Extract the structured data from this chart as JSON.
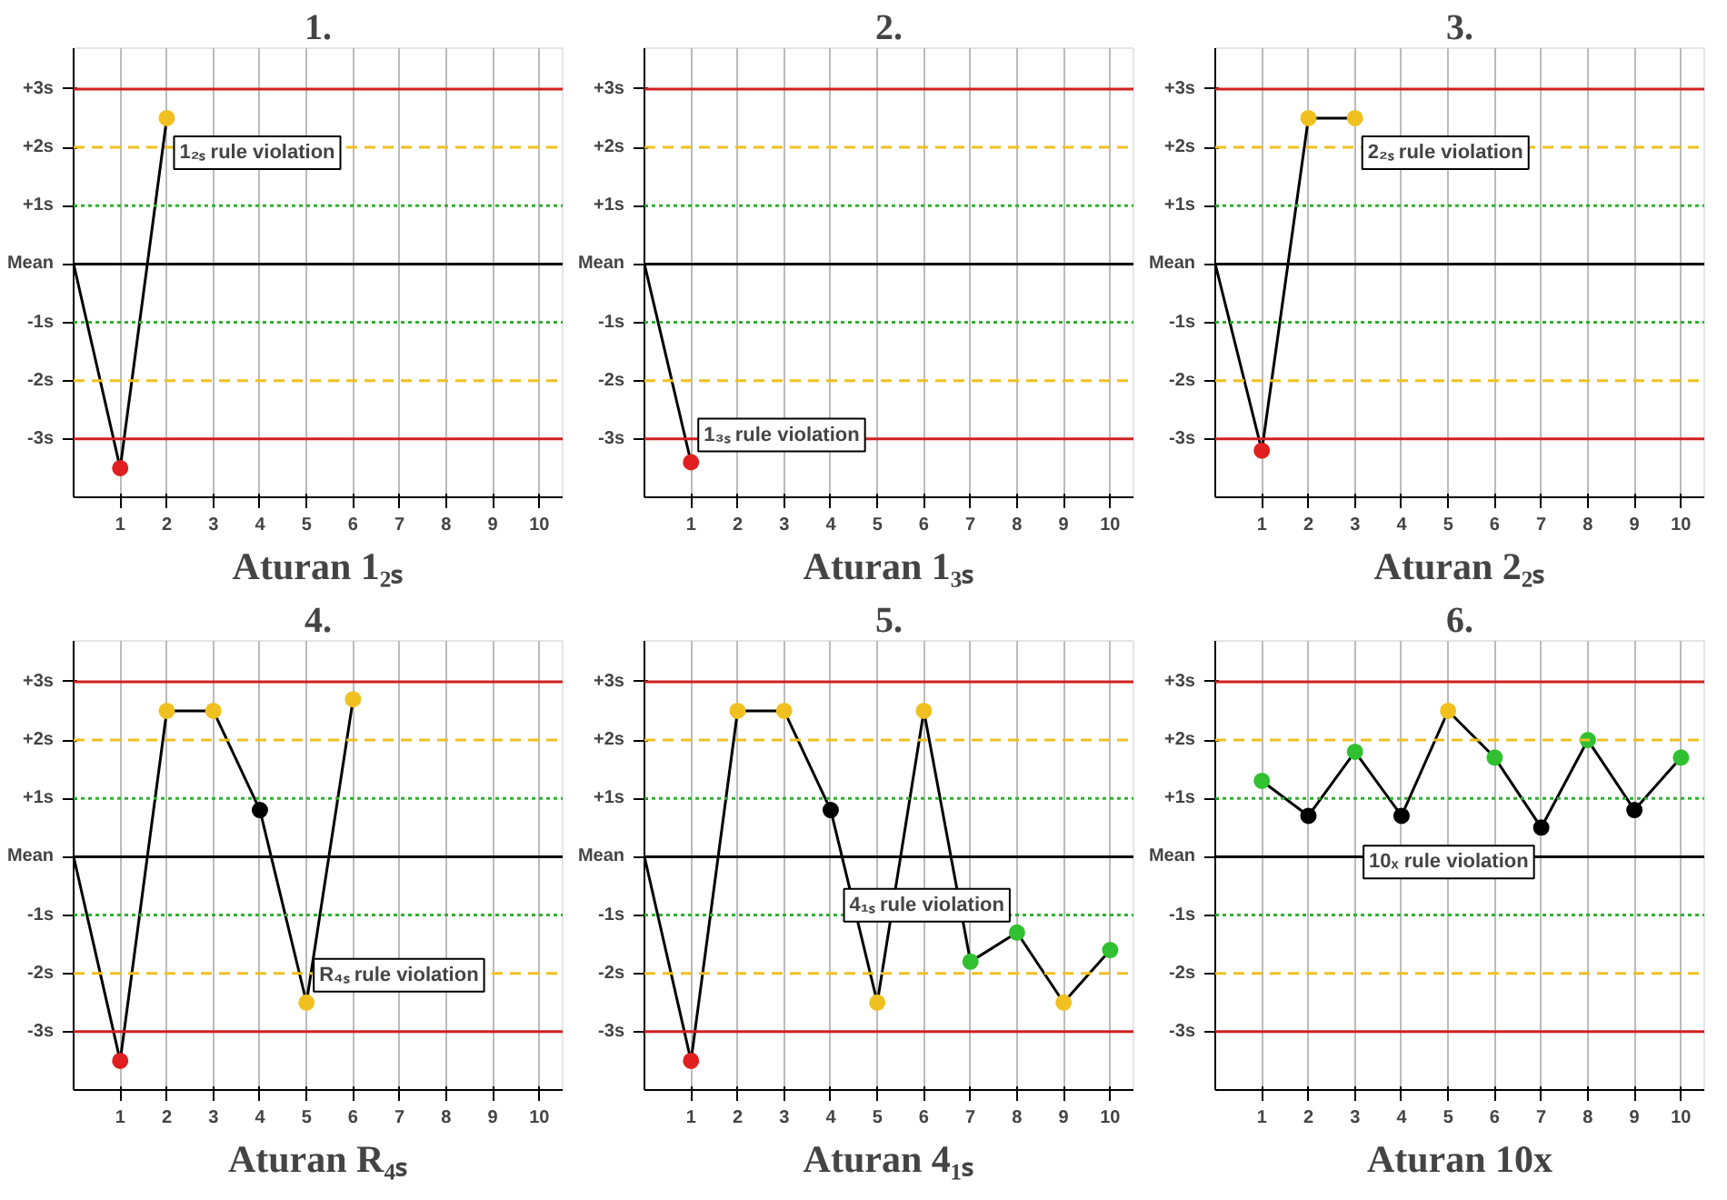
{
  "chart_data": [
    {
      "type": "line",
      "title": "1.",
      "xlabel": "Aturan 1₂ₛ",
      "x": [
        0,
        1,
        2
      ],
      "series": [
        {
          "color": "#000000",
          "values": [
            0,
            -3.5,
            2.5
          ],
          "colors": [
            null,
            "#e02020",
            "#f0c020"
          ]
        }
      ],
      "xlim": [
        0,
        10.5
      ],
      "ylim": [
        -4,
        3.7
      ],
      "xticks": [
        1,
        2,
        3,
        4,
        5,
        6,
        7,
        8,
        9,
        10
      ],
      "yticks": [
        {
          "value": 3,
          "label": "+3s"
        },
        {
          "value": 2,
          "label": "+2s"
        },
        {
          "value": 1,
          "label": "+1s"
        },
        {
          "value": 0,
          "label": "Mean"
        },
        {
          "value": -1,
          "label": "-1s"
        },
        {
          "value": -2,
          "label": "-2s"
        },
        {
          "value": -3,
          "label": "-3s"
        }
      ],
      "grid": "x",
      "marker": "circle",
      "line_style": "solid",
      "annotations": [
        {
          "text": "1₂ₛ rule violation",
          "x": 2,
          "y": 2.5
        }
      ],
      "ref_lines": [
        {
          "axis": "y",
          "value": 3,
          "color": "#d02020",
          "line_style": "solid"
        },
        {
          "axis": "y",
          "value": 2,
          "color": "#f0c020",
          "line_style": "dashed"
        },
        {
          "axis": "y",
          "value": 1,
          "color": "#30b030",
          "line_style": "dotted"
        },
        {
          "axis": "y",
          "value": 0,
          "color": "#000000",
          "line_style": "solid"
        },
        {
          "axis": "y",
          "value": -1,
          "color": "#30b030",
          "line_style": "dotted"
        },
        {
          "axis": "y",
          "value": -2,
          "color": "#f0c020",
          "line_style": "dashed"
        },
        {
          "axis": "y",
          "value": -3,
          "color": "#d02020",
          "line_style": "solid"
        }
      ]
    },
    {
      "type": "line",
      "title": "2.",
      "xlabel": "Aturan 1₃ₛ",
      "x": [
        0,
        1
      ],
      "series": [
        {
          "color": "#000000",
          "values": [
            0,
            -3.4
          ],
          "colors": [
            null,
            "#e02020"
          ]
        }
      ],
      "xlim": [
        0,
        10.5
      ],
      "ylim": [
        -4,
        3.7
      ],
      "xticks": [
        1,
        2,
        3,
        4,
        5,
        6,
        7,
        8,
        9,
        10
      ],
      "yticks": [
        {
          "value": 3,
          "label": "+3s"
        },
        {
          "value": 2,
          "label": "+2s"
        },
        {
          "value": 1,
          "label": "+1s"
        },
        {
          "value": 0,
          "label": "Mean"
        },
        {
          "value": -1,
          "label": "-1s"
        },
        {
          "value": -2,
          "label": "-2s"
        },
        {
          "value": -3,
          "label": "-3s"
        }
      ],
      "grid": "x",
      "marker": "circle",
      "line_style": "solid",
      "annotations": [
        {
          "text": "1₃ₛ rule violation",
          "x": 1,
          "y": -3.4
        }
      ],
      "ref_lines": [
        {
          "axis": "y",
          "value": 3,
          "color": "#d02020",
          "line_style": "solid"
        },
        {
          "axis": "y",
          "value": 2,
          "color": "#f0c020",
          "line_style": "dashed"
        },
        {
          "axis": "y",
          "value": 1,
          "color": "#30b030",
          "line_style": "dotted"
        },
        {
          "axis": "y",
          "value": 0,
          "color": "#000000",
          "line_style": "solid"
        },
        {
          "axis": "y",
          "value": -1,
          "color": "#30b030",
          "line_style": "dotted"
        },
        {
          "axis": "y",
          "value": -2,
          "color": "#f0c020",
          "line_style": "dashed"
        },
        {
          "axis": "y",
          "value": -3,
          "color": "#d02020",
          "line_style": "solid"
        }
      ]
    },
    {
      "type": "line",
      "title": "3.",
      "xlabel": "Aturan 2₂ₛ",
      "x": [
        0,
        1,
        2,
        3
      ],
      "series": [
        {
          "color": "#000000",
          "values": [
            0,
            -3.2,
            2.5,
            2.5
          ],
          "colors": [
            null,
            "#e02020",
            "#f0c020",
            "#f0c020"
          ]
        }
      ],
      "xlim": [
        0,
        10.5
      ],
      "ylim": [
        -4,
        3.7
      ],
      "xticks": [
        1,
        2,
        3,
        4,
        5,
        6,
        7,
        8,
        9,
        10
      ],
      "yticks": [
        {
          "value": 3,
          "label": "+3s"
        },
        {
          "value": 2,
          "label": "+2s"
        },
        {
          "value": 1,
          "label": "+1s"
        },
        {
          "value": 0,
          "label": "Mean"
        },
        {
          "value": -1,
          "label": "-1s"
        },
        {
          "value": -2,
          "label": "-2s"
        },
        {
          "value": -3,
          "label": "-3s"
        }
      ],
      "grid": "x",
      "marker": "circle",
      "line_style": "solid",
      "annotations": [
        {
          "text": "2₂ₛ rule violation",
          "x": 3,
          "y": 2.5
        }
      ],
      "ref_lines": [
        {
          "axis": "y",
          "value": 3,
          "color": "#d02020",
          "line_style": "solid"
        },
        {
          "axis": "y",
          "value": 2,
          "color": "#f0c020",
          "line_style": "dashed"
        },
        {
          "axis": "y",
          "value": 1,
          "color": "#30b030",
          "line_style": "dotted"
        },
        {
          "axis": "y",
          "value": 0,
          "color": "#000000",
          "line_style": "solid"
        },
        {
          "axis": "y",
          "value": -1,
          "color": "#30b030",
          "line_style": "dotted"
        },
        {
          "axis": "y",
          "value": -2,
          "color": "#f0c020",
          "line_style": "dashed"
        },
        {
          "axis": "y",
          "value": -3,
          "color": "#d02020",
          "line_style": "solid"
        }
      ]
    },
    {
      "type": "line",
      "title": "4.",
      "xlabel": "Aturan R₄ₛ",
      "x": [
        0,
        1,
        2,
        3,
        4,
        5,
        6
      ],
      "series": [
        {
          "color": "#000000",
          "values": [
            0,
            -3.5,
            2.5,
            2.5,
            0.8,
            -2.5,
            2.7
          ],
          "colors": [
            null,
            "#e02020",
            "#f0c020",
            "#f0c020",
            "#000000",
            "#f0c020",
            "#f0c020"
          ]
        }
      ],
      "xlim": [
        0,
        10.5
      ],
      "ylim": [
        -4,
        3.7
      ],
      "xticks": [
        1,
        2,
        3,
        4,
        5,
        6,
        7,
        8,
        9,
        10
      ],
      "yticks": [
        {
          "value": 3,
          "label": "+3s"
        },
        {
          "value": 2,
          "label": "+2s"
        },
        {
          "value": 1,
          "label": "+1s"
        },
        {
          "value": 0,
          "label": "Mean"
        },
        {
          "value": -1,
          "label": "-1s"
        },
        {
          "value": -2,
          "label": "-2s"
        },
        {
          "value": -3,
          "label": "-3s"
        }
      ],
      "grid": "x",
      "marker": "circle",
      "line_style": "solid",
      "annotations": [
        {
          "text": "R₄ₛ rule violation",
          "x": 5,
          "y": -2.5
        }
      ],
      "ref_lines": [
        {
          "axis": "y",
          "value": 3,
          "color": "#d02020",
          "line_style": "solid"
        },
        {
          "axis": "y",
          "value": 2,
          "color": "#f0c020",
          "line_style": "dashed"
        },
        {
          "axis": "y",
          "value": 1,
          "color": "#30b030",
          "line_style": "dotted"
        },
        {
          "axis": "y",
          "value": 0,
          "color": "#000000",
          "line_style": "solid"
        },
        {
          "axis": "y",
          "value": -1,
          "color": "#30b030",
          "line_style": "dotted"
        },
        {
          "axis": "y",
          "value": -2,
          "color": "#f0c020",
          "line_style": "dashed"
        },
        {
          "axis": "y",
          "value": -3,
          "color": "#d02020",
          "line_style": "solid"
        }
      ]
    },
    {
      "type": "line",
      "title": "5.",
      "xlabel": "Aturan 4₁ₛ",
      "x": [
        0,
        1,
        2,
        3,
        4,
        5,
        6,
        7,
        8,
        9,
        10
      ],
      "series": [
        {
          "color": "#000000",
          "values": [
            0,
            -3.5,
            2.5,
            2.5,
            0.8,
            -2.5,
            2.5,
            -1.8,
            -1.3,
            -2.5,
            -1.6
          ],
          "colors": [
            null,
            "#e02020",
            "#f0c020",
            "#f0c020",
            "#000000",
            "#f0c020",
            "#f0c020",
            "#30c030",
            "#30c030",
            "#f0c020",
            "#30c030"
          ]
        }
      ],
      "xlim": [
        0,
        10.5
      ],
      "ylim": [
        -4,
        3.7
      ],
      "xticks": [
        1,
        2,
        3,
        4,
        5,
        6,
        7,
        8,
        9,
        10
      ],
      "yticks": [
        {
          "value": 3,
          "label": "+3s"
        },
        {
          "value": 2,
          "label": "+2s"
        },
        {
          "value": 1,
          "label": "+1s"
        },
        {
          "value": 0,
          "label": "Mean"
        },
        {
          "value": -1,
          "label": "-1s"
        },
        {
          "value": -2,
          "label": "-2s"
        },
        {
          "value": -3,
          "label": "-3s"
        }
      ],
      "grid": "x",
      "marker": "circle",
      "line_style": "solid",
      "annotations": [
        {
          "text": "4₁ₛ rule violation",
          "x": 8,
          "y": -1.3
        }
      ],
      "ref_lines": [
        {
          "axis": "y",
          "value": 3,
          "color": "#d02020",
          "line_style": "solid"
        },
        {
          "axis": "y",
          "value": 2,
          "color": "#f0c020",
          "line_style": "dashed"
        },
        {
          "axis": "y",
          "value": 1,
          "color": "#30b030",
          "line_style": "dotted"
        },
        {
          "axis": "y",
          "value": 0,
          "color": "#000000",
          "line_style": "solid"
        },
        {
          "axis": "y",
          "value": -1,
          "color": "#30b030",
          "line_style": "dotted"
        },
        {
          "axis": "y",
          "value": -2,
          "color": "#f0c020",
          "line_style": "dashed"
        },
        {
          "axis": "y",
          "value": -3,
          "color": "#d02020",
          "line_style": "solid"
        }
      ]
    },
    {
      "type": "line",
      "title": "6.",
      "xlabel": "Aturan 10x",
      "x": [
        1,
        2,
        3,
        4,
        5,
        6,
        7,
        8,
        9,
        10
      ],
      "series": [
        {
          "color": "#000000",
          "values": [
            1.3,
            0.7,
            1.8,
            0.7,
            2.5,
            1.7,
            0.5,
            2,
            0.8,
            1.7
          ],
          "colors": [
            "#30c030",
            "#000000",
            "#30c030",
            "#000000",
            "#f0c020",
            "#30c030",
            "#000000",
            "#30c030",
            "#000000",
            "#30c030"
          ]
        }
      ],
      "xlim": [
        0,
        10.5
      ],
      "ylim": [
        -4,
        3.7
      ],
      "xticks": [
        1,
        2,
        3,
        4,
        5,
        6,
        7,
        8,
        9,
        10
      ],
      "yticks": [
        {
          "value": 3,
          "label": "+3s"
        },
        {
          "value": 2,
          "label": "+2s"
        },
        {
          "value": 1,
          "label": "+1s"
        },
        {
          "value": 0,
          "label": "Mean"
        },
        {
          "value": -1,
          "label": "-1s"
        },
        {
          "value": -2,
          "label": "-2s"
        },
        {
          "value": -3,
          "label": "-3s"
        }
      ],
      "grid": "x",
      "marker": "circle",
      "line_style": "solid",
      "annotations": [
        {
          "text": "10ₓ rule violation",
          "x": 7,
          "y": 0.5
        }
      ],
      "ref_lines": [
        {
          "axis": "y",
          "value": 3,
          "color": "#d02020",
          "line_style": "solid"
        },
        {
          "axis": "y",
          "value": 2,
          "color": "#f0c020",
          "line_style": "dashed"
        },
        {
          "axis": "y",
          "value": 1,
          "color": "#30b030",
          "line_style": "dotted"
        },
        {
          "axis": "y",
          "value": 0,
          "color": "#000000",
          "line_style": "solid"
        },
        {
          "axis": "y",
          "value": -1,
          "color": "#30b030",
          "line_style": "dotted"
        },
        {
          "axis": "y",
          "value": -2,
          "color": "#f0c020",
          "line_style": "dashed"
        },
        {
          "axis": "y",
          "value": -3,
          "color": "#d02020",
          "line_style": "solid"
        }
      ]
    }
  ]
}
